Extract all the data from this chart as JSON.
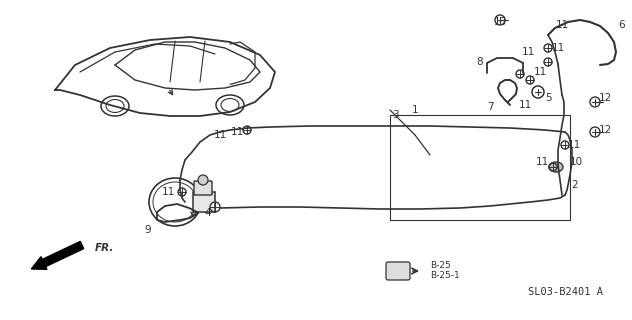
{
  "bg_color": "#ffffff",
  "line_color": "#333333",
  "diagram_code": "SL03-B2401 A",
  "legend_B25": "B-25",
  "legend_B25_1": "B-25-1",
  "figsize": [
    6.32,
    3.2
  ],
  "dpi": 100
}
